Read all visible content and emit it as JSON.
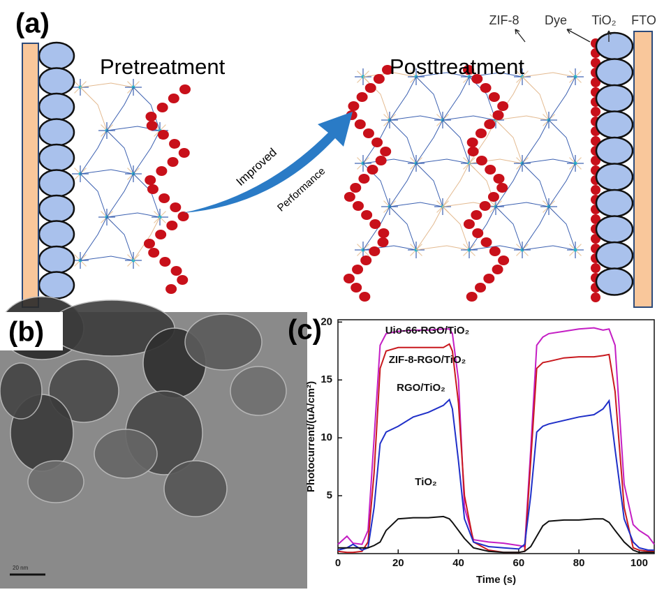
{
  "panel_a": {
    "label": "(a)",
    "left_title": "Pretreatment",
    "right_title": "Posttreatment",
    "arrow_text": [
      "Improved",
      "Performance"
    ],
    "layer_labels": [
      "ZIF-8",
      "Dye",
      "TiO₂",
      "FTO"
    ]
  },
  "panel_b": {
    "label": "(b)",
    "scale_bar": "20 nm"
  },
  "panel_c": {
    "label": "(c)"
  },
  "chart_data": {
    "type": "line",
    "x_label": "Time (s)",
    "y_label": "Photocurrent/(uA/cm²)",
    "x": [
      0,
      3,
      5,
      8,
      10,
      12,
      14,
      16,
      20,
      25,
      30,
      35,
      37,
      38,
      40,
      42,
      45,
      50,
      55,
      60,
      62,
      64,
      66,
      68,
      70,
      75,
      80,
      85,
      88,
      90,
      92,
      95,
      98,
      100,
      103,
      105
    ],
    "series": [
      {
        "name": "Uio-66-RGO/TiO₂",
        "color": "#c41ec4",
        "values": [
          0.8,
          1.5,
          0.9,
          0.8,
          2,
          10,
          18,
          19,
          19.2,
          19.3,
          19.3,
          19.4,
          19.4,
          19,
          15,
          4,
          1.2,
          1,
          0.9,
          0.7,
          0.6,
          9,
          18,
          18.7,
          19,
          19.2,
          19.4,
          19.5,
          19.3,
          19.4,
          18,
          6,
          2.5,
          2,
          1.5,
          0.8
        ]
      },
      {
        "name": "ZIF-8-RGO/TiO₂",
        "color": "#c8191e",
        "values": [
          0.2,
          0.1,
          0.1,
          0.2,
          1,
          7,
          16,
          17.5,
          17.8,
          17.8,
          17.8,
          17.8,
          18.1,
          17.5,
          13,
          5,
          1,
          0.3,
          0.1,
          0.1,
          0.2,
          8,
          16,
          16.5,
          16.6,
          16.9,
          17,
          17,
          17.1,
          17.2,
          14,
          4,
          0.5,
          0.3,
          0.2,
          0.2
        ]
      },
      {
        "name": "RGO/TiO₂",
        "color": "#1f2fc8",
        "values": [
          0.3,
          0.5,
          0.8,
          0.3,
          0.5,
          4,
          9.5,
          10.5,
          11,
          11.8,
          12.2,
          12.8,
          13.3,
          12.5,
          8,
          3,
          1,
          0.6,
          0.5,
          0.4,
          0.8,
          5,
          10.5,
          11,
          11.2,
          11.5,
          11.8,
          12,
          12.5,
          13.2,
          9,
          3,
          1,
          0.5,
          0.3,
          0.3
        ]
      },
      {
        "name": "TiO₂",
        "color": "#111111",
        "values": [
          0.5,
          0.5,
          0.5,
          0.5,
          0.5,
          0.7,
          1,
          2,
          3,
          3.1,
          3.1,
          3.2,
          3,
          2.7,
          2,
          1.3,
          0.5,
          0.2,
          0.1,
          0.1,
          0.2,
          0.6,
          1.5,
          2.4,
          2.8,
          2.9,
          2.9,
          3,
          3,
          2.7,
          2,
          1,
          0.3,
          0.1,
          0.1,
          0.1
        ]
      }
    ],
    "xlim": [
      0,
      105
    ],
    "ylim": [
      0,
      20.2
    ],
    "xticks": [
      0,
      20,
      40,
      60,
      80,
      100
    ],
    "yticks": [
      5,
      10,
      15,
      20
    ]
  }
}
